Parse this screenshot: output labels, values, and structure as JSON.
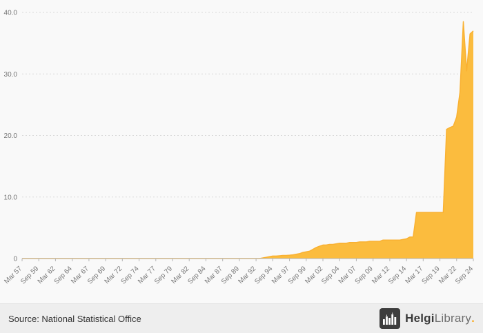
{
  "chart_data": {
    "type": "area",
    "title": "",
    "ylim": [
      0,
      40
    ],
    "yticks": [
      0,
      10,
      20,
      30,
      40
    ],
    "ytick_labels": [
      "0",
      "10.0",
      "20.0",
      "30.0",
      "40.0"
    ],
    "x_tick_every": 5,
    "x_tick_labels": [
      "Mar 57",
      "Sep 59",
      "Mar 62",
      "Sep 64",
      "Mar 67",
      "Sep 69",
      "Mar 72",
      "Sep 74",
      "Mar 77",
      "Sep 79",
      "Mar 82",
      "Sep 84",
      "Mar 87",
      "Sep 89",
      "Mar 92",
      "Sep 94",
      "Mar 97",
      "Sep 99",
      "Mar 02",
      "Sep 04",
      "Mar 07",
      "Sep 09",
      "Mar 12",
      "Sep 14",
      "Mar 17",
      "Sep 19",
      "Mar 22",
      "Sep 24"
    ],
    "values": [
      0,
      0,
      0,
      0,
      0,
      0,
      0,
      0,
      0,
      0,
      0,
      0,
      0,
      0,
      0,
      0,
      0,
      0,
      0,
      0,
      0,
      0,
      0,
      0,
      0,
      0,
      0,
      0,
      0,
      0,
      0,
      0,
      0,
      0,
      0,
      0,
      0,
      0,
      0,
      0,
      0,
      0,
      0,
      0,
      0,
      0,
      0,
      0,
      0,
      0,
      0,
      0,
      0,
      0,
      0,
      0,
      0,
      0,
      0,
      0,
      0,
      0,
      0,
      0,
      0,
      0,
      0,
      0,
      0,
      0,
      0,
      0,
      0.1,
      0.2,
      0.3,
      0.4,
      0.4,
      0.45,
      0.5,
      0.5,
      0.55,
      0.6,
      0.7,
      0.8,
      1.0,
      1.1,
      1.2,
      1.5,
      1.8,
      2.0,
      2.2,
      2.2,
      2.3,
      2.3,
      2.4,
      2.5,
      2.5,
      2.5,
      2.6,
      2.6,
      2.6,
      2.7,
      2.7,
      2.7,
      2.8,
      2.8,
      2.8,
      2.8,
      3.0,
      3.0,
      3.0,
      3.0,
      3.0,
      3.0,
      3.1,
      3.2,
      3.5,
      3.5,
      7.5,
      7.5,
      7.5,
      7.5,
      7.5,
      7.5,
      7.5,
      7.5,
      7.5,
      21.0,
      21.3,
      21.5,
      23.0,
      27.0,
      38.5,
      30.5,
      36.5,
      37.0
    ],
    "area_color": "#fbbc3e",
    "line_color": "#f9b132",
    "grid_color": "#d9d9d9",
    "axis_color": "#b3b3b3",
    "label_color": "#777777",
    "grid": true,
    "legend_position": "none"
  },
  "footer": {
    "source": "Source: National Statistical Office",
    "logo": {
      "text_bold": "Helgi",
      "text_light": "Library",
      "dot": "."
    }
  }
}
